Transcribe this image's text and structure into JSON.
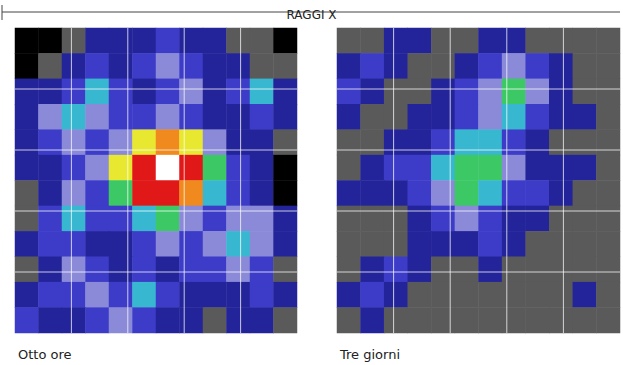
{
  "title": "RAGGI X",
  "chart_data": [
    {
      "type": "heatmap",
      "title": "Otto ore",
      "grid": true,
      "tick_labels": false,
      "colors": [
        "#000000",
        "#5a5a5a",
        "#24249a",
        "#3c3cc8",
        "#8a8ad8",
        "#38b8d0",
        "#3cc864",
        "#e8e830",
        "#f08a1e",
        "#e01818",
        "#ffffff"
      ],
      "cells": [
        [
          0,
          0,
          1,
          2,
          2,
          2,
          3,
          2,
          2,
          1,
          1,
          0
        ],
        [
          0,
          1,
          2,
          3,
          2,
          3,
          4,
          3,
          2,
          2,
          1,
          1
        ],
        [
          2,
          2,
          3,
          5,
          3,
          2,
          3,
          4,
          2,
          3,
          5,
          2
        ],
        [
          2,
          4,
          5,
          4,
          3,
          3,
          4,
          3,
          2,
          2,
          3,
          2
        ],
        [
          2,
          3,
          4,
          3,
          4,
          7,
          8,
          7,
          4,
          2,
          2,
          1
        ],
        [
          2,
          2,
          3,
          4,
          7,
          9,
          10,
          9,
          6,
          3,
          2,
          0
        ],
        [
          1,
          2,
          4,
          3,
          6,
          9,
          9,
          8,
          5,
          3,
          2,
          0
        ],
        [
          1,
          3,
          5,
          3,
          3,
          5,
          6,
          4,
          3,
          4,
          4,
          2
        ],
        [
          2,
          3,
          3,
          2,
          2,
          3,
          4,
          3,
          4,
          5,
          4,
          2
        ],
        [
          1,
          2,
          4,
          3,
          2,
          3,
          2,
          3,
          3,
          4,
          3,
          1
        ],
        [
          2,
          3,
          3,
          4,
          3,
          5,
          3,
          2,
          2,
          2,
          3,
          2
        ],
        [
          3,
          2,
          2,
          3,
          4,
          3,
          2,
          2,
          1,
          2,
          2,
          1
        ]
      ]
    },
    {
      "type": "heatmap",
      "title": "Tre giorni",
      "grid": true,
      "tick_labels": false,
      "colors": [
        "#000000",
        "#5a5a5a",
        "#24249a",
        "#3c3cc8",
        "#8a8ad8",
        "#38b8d0",
        "#3cc864",
        "#e8e830",
        "#f08a1e",
        "#e01818",
        "#ffffff"
      ],
      "cells": [
        [
          1,
          1,
          2,
          2,
          1,
          1,
          2,
          2,
          1,
          1,
          1,
          1
        ],
        [
          2,
          3,
          2,
          1,
          1,
          2,
          3,
          4,
          3,
          2,
          1,
          1
        ],
        [
          3,
          2,
          1,
          1,
          2,
          3,
          4,
          6,
          4,
          2,
          1,
          1
        ],
        [
          2,
          1,
          1,
          2,
          2,
          3,
          4,
          5,
          3,
          2,
          2,
          1
        ],
        [
          1,
          1,
          2,
          2,
          3,
          5,
          5,
          3,
          2,
          1,
          1,
          1
        ],
        [
          1,
          2,
          3,
          3,
          5,
          6,
          6,
          4,
          2,
          2,
          2,
          1
        ],
        [
          2,
          2,
          2,
          3,
          4,
          6,
          5,
          3,
          3,
          2,
          1,
          1
        ],
        [
          1,
          1,
          1,
          2,
          3,
          4,
          3,
          2,
          2,
          1,
          1,
          1
        ],
        [
          1,
          1,
          1,
          2,
          2,
          2,
          3,
          2,
          1,
          1,
          1,
          1
        ],
        [
          1,
          2,
          3,
          2,
          1,
          1,
          2,
          1,
          1,
          1,
          1,
          1
        ],
        [
          2,
          3,
          2,
          1,
          1,
          1,
          1,
          1,
          1,
          1,
          2,
          1
        ],
        [
          1,
          2,
          1,
          1,
          1,
          1,
          1,
          1,
          1,
          1,
          1,
          1
        ]
      ]
    }
  ]
}
